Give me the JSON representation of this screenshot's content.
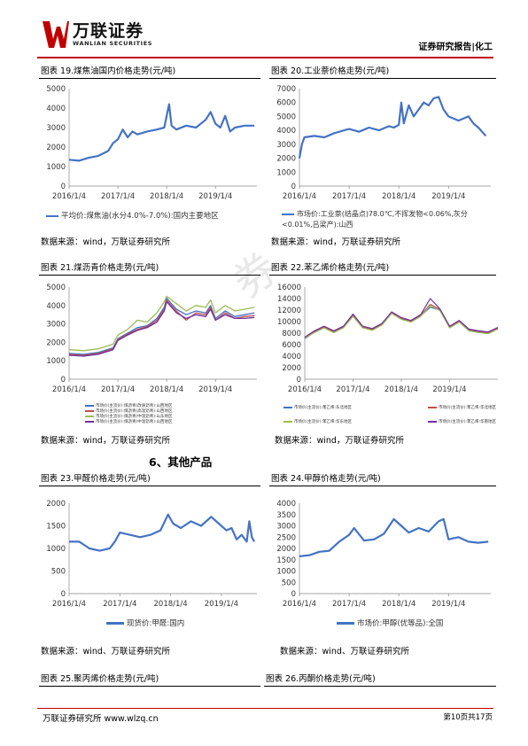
{
  "header": {
    "logo_cn": "万联证券",
    "logo_en": "WANLIAN SECURITIES",
    "report_type": "证券研究报告|化工"
  },
  "colors": {
    "accent": "#c00000",
    "line_blue": "#4472c4",
    "line_red": "#c0504d",
    "line_green": "#9bbb59",
    "line_purple": "#7030a0"
  },
  "watermark": "券",
  "section_title": "6、其他产品",
  "source_text": "数据来源：wind，万联证券研究所",
  "source_text_alt": "数据来源：wind、万联证券研究所",
  "footer": {
    "left": "万联证券研究所 www.wlzq.cn",
    "page": "第10页共17页"
  },
  "charts": {
    "c19": {
      "caption": "图表 19.煤焦油国内价格走势(元/吨)",
      "legend": [
        "平均价:煤焦油(水分4.0%-7.0%):国内主要地区"
      ]
    },
    "c20": {
      "caption": "图表 20.工业萘价格走势(元/吨)",
      "legend": [
        "市场价:工业萘(结晶点)78.0℃,不挥发物<0.06%,灰分<0.01%,吕梁产):山西"
      ]
    },
    "c21": {
      "caption": "图表 21.煤沥青价格走势(元/吨)",
      "legend": [
        "市场价(主流价):煤沥青(改质沥青):山西地区",
        "市场价(主流价):煤沥青(高温沥青):山西地区",
        "市场价(主流价):煤沥青(中温沥青):山东地区",
        "市场价(主流价):煤沥青(中温沥青):山西地区"
      ]
    },
    "c22": {
      "caption": "图表 22.苯乙烯价格走势(元/吨)",
      "legend": [
        "市场价(主流价):苯乙烯:东北地区",
        "市场价(主流价):苯乙烯:华北地区",
        "市场价(主流价):苯乙烯:华东地区",
        "市场价(主流价):苯乙烯:华南地区"
      ]
    },
    "c23": {
      "caption": "图表 23.甲醛价格走势(元/吨)",
      "legend": [
        "现货价:甲醛:国内"
      ]
    },
    "c24": {
      "caption": "图表 24.甲醇价格走势(元/吨)",
      "legend": [
        "市场价:甲醇(优等品):全国"
      ]
    },
    "c25": {
      "caption": "图表 25.聚丙烯价格走势(元/吨)"
    },
    "c26": {
      "caption": "图表 26.丙酮价格走势(元/吨)"
    }
  },
  "chart_data": [
    {
      "type": "line",
      "title": "图表 19.煤焦油国内价格走势(元/吨)",
      "x_ticks": [
        "2016/1/4",
        "2017/1/4",
        "2018/1/4",
        "2019/1/4"
      ],
      "ylim": [
        0,
        5000
      ],
      "y_ticks": [
        0,
        1000,
        2000,
        3000,
        4000,
        5000
      ],
      "series": [
        {
          "name": "平均价:煤焦油(水分4.0%-7.0%):国内主要地区",
          "color": "#4472c4",
          "x": [
            2016.0,
            2016.2,
            2016.4,
            2016.6,
            2016.8,
            2016.9,
            2017.0,
            2017.1,
            2017.2,
            2017.3,
            2017.4,
            2017.6,
            2017.8,
            2017.95,
            2018.05,
            2018.1,
            2018.2,
            2018.4,
            2018.6,
            2018.8,
            2018.9,
            2019.0,
            2019.1,
            2019.2,
            2019.3,
            2019.4,
            2019.6,
            2019.8
          ],
          "y": [
            1350,
            1300,
            1450,
            1550,
            1800,
            2200,
            2400,
            2900,
            2500,
            2800,
            2650,
            2800,
            2900,
            3000,
            4200,
            3100,
            2900,
            3100,
            3000,
            3400,
            3800,
            3200,
            3000,
            3600,
            2800,
            3000,
            3100,
            3100
          ]
        }
      ]
    },
    {
      "type": "line",
      "title": "图表 20.工业萘价格走势(元/吨)",
      "x_ticks": [
        "2016/1/4",
        "2017/1/4",
        "2018/1/4",
        "2019/1/4"
      ],
      "ylim": [
        0,
        7000
      ],
      "y_ticks": [
        0,
        1000,
        2000,
        3000,
        4000,
        5000,
        6000,
        7000
      ],
      "series": [
        {
          "name": "市场价:工业萘(结晶点)78.0℃,不挥发物<0.06%,灰分<0.01%,吕梁产):山西",
          "color": "#4472c4",
          "x": [
            2016.0,
            2016.05,
            2016.1,
            2016.3,
            2016.5,
            2016.7,
            2016.9,
            2017.0,
            2017.2,
            2017.4,
            2017.6,
            2017.8,
            2017.9,
            2018.0,
            2018.05,
            2018.1,
            2018.2,
            2018.3,
            2018.4,
            2018.5,
            2018.6,
            2018.7,
            2018.8,
            2018.9,
            2019.0,
            2019.2,
            2019.4,
            2019.5,
            2019.6,
            2019.7,
            2019.75
          ],
          "y": [
            2000,
            3000,
            3500,
            3600,
            3500,
            3800,
            4000,
            4100,
            3900,
            4200,
            4000,
            4300,
            4200,
            4400,
            6000,
            4500,
            5800,
            5000,
            5500,
            6000,
            5800,
            6300,
            6400,
            5500,
            5000,
            4700,
            5000,
            4500,
            4200,
            3800,
            3600
          ]
        }
      ]
    },
    {
      "type": "line",
      "title": "图表 21.煤沥青价格走势(元/吨)",
      "x_ticks": [
        "2016/1/4",
        "2017/1/4",
        "2018/1/4",
        "2019/1/4"
      ],
      "ylim": [
        0,
        5000
      ],
      "y_ticks": [
        0,
        1000,
        2000,
        3000,
        4000,
        5000
      ],
      "series": [
        {
          "name": "市场价(主流价):煤沥青(改质沥青):山西地区",
          "color": "#4472c4",
          "x": [
            2016.0,
            2016.3,
            2016.6,
            2016.9,
            2017.0,
            2017.2,
            2017.4,
            2017.6,
            2017.8,
            2017.95,
            2018.0,
            2018.2,
            2018.4,
            2018.6,
            2018.8,
            2018.9,
            2019.0,
            2019.2,
            2019.4,
            2019.6,
            2019.8
          ],
          "y": [
            1400,
            1350,
            1450,
            1700,
            2200,
            2500,
            2800,
            2900,
            3300,
            3900,
            4400,
            3800,
            3500,
            3700,
            3600,
            4000,
            3300,
            3700,
            3400,
            3500,
            3600
          ]
        },
        {
          "name": "市场价(主流价):煤沥青(高温沥青):山西地区",
          "color": "#c0504d",
          "x": [
            2016.0,
            2016.3,
            2016.6,
            2016.9,
            2017.0,
            2017.2,
            2017.4,
            2017.6,
            2017.8,
            2017.95,
            2018.0,
            2018.2,
            2018.4,
            2018.6,
            2018.8,
            2018.9,
            2019.0,
            2019.2,
            2019.4,
            2019.6,
            2019.8
          ],
          "y": [
            1350,
            1300,
            1400,
            1650,
            2150,
            2450,
            2700,
            2850,
            3200,
            3800,
            4300,
            3700,
            3200,
            3600,
            3500,
            3900,
            3200,
            3600,
            3300,
            3400,
            3450
          ]
        },
        {
          "name": "市场价(主流价):煤沥青(中温沥青):山东地区",
          "color": "#9bbb59",
          "x": [
            2016.0,
            2016.3,
            2016.6,
            2016.9,
            2017.0,
            2017.2,
            2017.4,
            2017.6,
            2017.8,
            2017.95,
            2018.0,
            2018.2,
            2018.4,
            2018.6,
            2018.8,
            2018.9,
            2019.0,
            2019.2,
            2019.4,
            2019.6,
            2019.8
          ],
          "y": [
            1600,
            1550,
            1650,
            1900,
            2400,
            2700,
            3200,
            3100,
            3600,
            4200,
            4500,
            4100,
            3700,
            4000,
            3900,
            4300,
            3600,
            4000,
            3700,
            3800,
            3900
          ]
        },
        {
          "name": "市场价(主流价):煤沥青(中温沥青):山西地区",
          "color": "#7030a0",
          "x": [
            2016.0,
            2016.3,
            2016.6,
            2016.9,
            2017.0,
            2017.2,
            2017.4,
            2017.6,
            2017.8,
            2017.95,
            2018.0,
            2018.2,
            2018.4,
            2018.6,
            2018.8,
            2018.9,
            2019.0,
            2019.2,
            2019.4,
            2019.6,
            2019.8
          ],
          "y": [
            1300,
            1250,
            1350,
            1600,
            2100,
            2400,
            2650,
            2800,
            3100,
            3700,
            4200,
            3600,
            3300,
            3500,
            3400,
            3800,
            3200,
            3500,
            3300,
            3300,
            3350
          ]
        }
      ]
    },
    {
      "type": "line",
      "title": "图表 22.苯乙烯价格走势(元/吨)",
      "x_ticks": [
        "2016/1/4",
        "2017/1/4",
        "2018/1/4",
        "2019/1/4"
      ],
      "ylim": [
        0,
        16000
      ],
      "y_ticks": [
        0,
        2000,
        4000,
        6000,
        8000,
        10000,
        12000,
        14000,
        16000
      ],
      "series": [
        {
          "name": "市场价(主流价):苯乙烯:东北地区",
          "color": "#4472c4",
          "x": [
            2016.0,
            2016.2,
            2016.4,
            2016.6,
            2016.8,
            2017.0,
            2017.2,
            2017.4,
            2017.6,
            2017.8,
            2018.0,
            2018.2,
            2018.4,
            2018.6,
            2018.8,
            2019.0,
            2019.2,
            2019.4,
            2019.6,
            2019.8,
            2020.0
          ],
          "y": [
            7000,
            8200,
            9000,
            8200,
            9000,
            11000,
            9000,
            8600,
            9500,
            11500,
            10500,
            10000,
            11000,
            12500,
            12000,
            9000,
            10000,
            8500,
            8200,
            8000,
            8800
          ]
        },
        {
          "name": "市场价(主流价):苯乙烯:华北地区",
          "color": "#c0504d",
          "x": [
            2016.0,
            2016.2,
            2016.4,
            2016.6,
            2016.8,
            2017.0,
            2017.2,
            2017.4,
            2017.6,
            2017.8,
            2018.0,
            2018.2,
            2018.4,
            2018.6,
            2018.8,
            2019.0,
            2019.2,
            2019.4,
            2019.6,
            2019.8,
            2020.0
          ],
          "y": [
            7200,
            8300,
            9100,
            8300,
            9100,
            11200,
            9100,
            8700,
            9600,
            11600,
            10600,
            10100,
            11100,
            13000,
            12100,
            9100,
            10100,
            8600,
            8300,
            8100,
            8900
          ]
        },
        {
          "name": "市场价(主流价):苯乙烯:华东地区",
          "color": "#9bbb59",
          "x": [
            2016.0,
            2016.2,
            2016.4,
            2016.6,
            2016.8,
            2017.0,
            2017.2,
            2017.4,
            2017.6,
            2017.8,
            2018.0,
            2018.2,
            2018.4,
            2018.6,
            2018.8,
            2019.0,
            2019.2,
            2019.4,
            2019.6,
            2019.8,
            2020.0
          ],
          "y": [
            7100,
            8100,
            8900,
            8100,
            8900,
            10900,
            8900,
            8500,
            9400,
            11400,
            10400,
            9900,
            10900,
            12800,
            11900,
            8900,
            9900,
            8400,
            8100,
            7900,
            8700
          ]
        },
        {
          "name": "市场价(主流价):苯乙烯:华南地区",
          "color": "#7030a0",
          "x": [
            2016.0,
            2016.2,
            2016.4,
            2016.6,
            2016.8,
            2017.0,
            2017.2,
            2017.4,
            2017.6,
            2017.8,
            2018.0,
            2018.2,
            2018.4,
            2018.6,
            2018.8,
            2019.0,
            2019.2,
            2019.4,
            2019.6,
            2019.8,
            2020.0
          ],
          "y": [
            7300,
            8400,
            9200,
            8400,
            9200,
            11300,
            9200,
            8800,
            9700,
            11700,
            10700,
            10200,
            11200,
            14000,
            12200,
            9200,
            10200,
            8700,
            8400,
            8200,
            9000
          ]
        }
      ]
    },
    {
      "type": "line",
      "title": "图表 23.甲醛价格走势(元/吨)",
      "x_ticks": [
        "2016/1/4",
        "2017/1/4",
        "2018/1/4",
        "2019/1/4"
      ],
      "ylim": [
        0,
        2000
      ],
      "y_ticks": [
        0,
        500,
        1000,
        1500,
        2000
      ],
      "series": [
        {
          "name": "现货价:甲醛:国内",
          "color": "#4472c4",
          "x": [
            2016.0,
            2016.2,
            2016.4,
            2016.6,
            2016.8,
            2016.9,
            2017.0,
            2017.2,
            2017.4,
            2017.6,
            2017.8,
            2017.95,
            2018.05,
            2018.2,
            2018.4,
            2018.6,
            2018.8,
            2018.95,
            2019.1,
            2019.2,
            2019.3,
            2019.4,
            2019.5,
            2019.55,
            2019.6,
            2019.65
          ],
          "y": [
            1150,
            1150,
            1000,
            950,
            1000,
            1150,
            1350,
            1300,
            1250,
            1300,
            1400,
            1750,
            1550,
            1450,
            1600,
            1500,
            1700,
            1550,
            1400,
            1450,
            1200,
            1300,
            1150,
            1600,
            1250,
            1150
          ]
        }
      ]
    },
    {
      "type": "line",
      "title": "图表 24.甲醇价格走势(元/吨)",
      "x_ticks": [
        "2016/1/4",
        "2017/1/4",
        "2018/1/4",
        "2019/1/4"
      ],
      "ylim": [
        0,
        4000
      ],
      "y_ticks": [
        0,
        500,
        1000,
        1500,
        2000,
        2500,
        3000,
        3500,
        4000
      ],
      "series": [
        {
          "name": "市场价:甲醇(优等品):全国",
          "color": "#4472c4",
          "x": [
            2016.0,
            2016.2,
            2016.4,
            2016.6,
            2016.8,
            2017.0,
            2017.1,
            2017.3,
            2017.5,
            2017.7,
            2017.9,
            2018.0,
            2018.2,
            2018.4,
            2018.6,
            2018.8,
            2018.9,
            2019.0,
            2019.2,
            2019.4,
            2019.6,
            2019.8
          ],
          "y": [
            1650,
            1700,
            1850,
            1900,
            2300,
            2600,
            2900,
            2350,
            2400,
            2650,
            3300,
            3100,
            2700,
            2900,
            2750,
            3200,
            3300,
            2400,
            2500,
            2300,
            2250,
            2300
          ]
        }
      ]
    }
  ]
}
